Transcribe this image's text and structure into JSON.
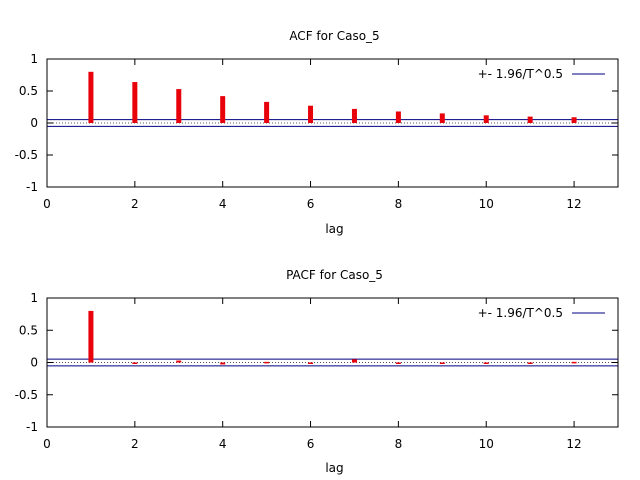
{
  "chart_data": [
    {
      "type": "bar",
      "title": "ACF for Caso_5",
      "xlabel": "lag",
      "ylabel": "",
      "xlim": [
        0,
        13
      ],
      "ylim": [
        -1,
        1
      ],
      "xticks": [
        0,
        2,
        4,
        6,
        8,
        10,
        12
      ],
      "yticks": [
        1,
        0.5,
        0,
        -0.5,
        -1
      ],
      "ytick_labels": [
        "1",
        "0.5",
        "0",
        "-0.5",
        "-1"
      ],
      "legend_label": "+- 1.96/T^0.5",
      "legend_position": "top-right",
      "confidence_bound": 0.052,
      "bar_color": "#e8000b",
      "band_color": "#000080",
      "lags": [
        1,
        2,
        3,
        4,
        5,
        6,
        7,
        8,
        9,
        10,
        11,
        12
      ],
      "values": [
        0.8,
        0.64,
        0.53,
        0.42,
        0.33,
        0.27,
        0.22,
        0.18,
        0.15,
        0.12,
        0.1,
        0.09
      ]
    },
    {
      "type": "bar",
      "title": "PACF for Caso_5",
      "xlabel": "lag",
      "ylabel": "",
      "xlim": [
        0,
        13
      ],
      "ylim": [
        -1,
        1
      ],
      "xticks": [
        0,
        2,
        4,
        6,
        8,
        10,
        12
      ],
      "yticks": [
        1,
        0.5,
        0,
        -0.5,
        -1
      ],
      "ytick_labels": [
        "1",
        "0.5",
        "0",
        "-0.5",
        "-1"
      ],
      "legend_label": "+- 1.96/T^0.5",
      "legend_position": "top-right",
      "confidence_bound": 0.052,
      "bar_color": "#e8000b",
      "band_color": "#000080",
      "lags": [
        1,
        2,
        3,
        4,
        5,
        6,
        7,
        8,
        9,
        10,
        11,
        12
      ],
      "values": [
        0.8,
        -0.01,
        0.03,
        -0.03,
        0.01,
        -0.01,
        0.05,
        0.0,
        -0.01,
        0.0,
        -0.01,
        0.01
      ]
    }
  ]
}
